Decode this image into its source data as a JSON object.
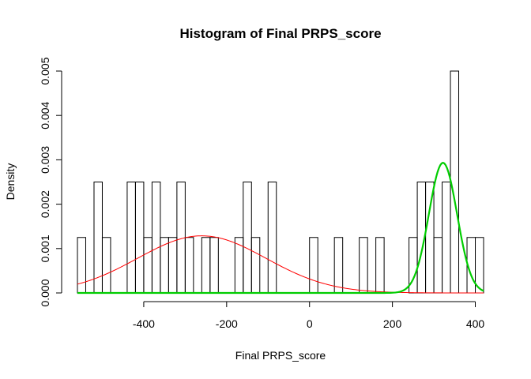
{
  "chart_data": {
    "type": "bar",
    "title": "Histogram of Final PRPS_score",
    "xlabel": "Final PRPS_score",
    "ylabel": "Density",
    "xlim": [
      -560,
      420
    ],
    "ylim": [
      0,
      0.005
    ],
    "x_ticks": [
      {
        "value": -400,
        "label": "-400"
      },
      {
        "value": -200,
        "label": "-200"
      },
      {
        "value": 0,
        "label": "0"
      },
      {
        "value": 200,
        "label": "200"
      },
      {
        "value": 400,
        "label": "400"
      }
    ],
    "y_ticks": [
      {
        "value": 0,
        "label": "0.000"
      },
      {
        "value": 0.001,
        "label": "0.001"
      },
      {
        "value": 0.002,
        "label": "0.002"
      },
      {
        "value": 0.003,
        "label": "0.003"
      },
      {
        "value": 0.004,
        "label": "0.004"
      },
      {
        "value": 0.005,
        "label": "0.005"
      }
    ],
    "bin_width": 20,
    "bins": [
      {
        "start": -560,
        "density": 0.00125
      },
      {
        "start": -540,
        "density": 0
      },
      {
        "start": -520,
        "density": 0.0025
      },
      {
        "start": -500,
        "density": 0.00125
      },
      {
        "start": -480,
        "density": 0
      },
      {
        "start": -460,
        "density": 0
      },
      {
        "start": -440,
        "density": 0.0025
      },
      {
        "start": -420,
        "density": 0.0025
      },
      {
        "start": -400,
        "density": 0.00125
      },
      {
        "start": -380,
        "density": 0.0025
      },
      {
        "start": -360,
        "density": 0.00125
      },
      {
        "start": -340,
        "density": 0.00125
      },
      {
        "start": -320,
        "density": 0.0025
      },
      {
        "start": -300,
        "density": 0.00125
      },
      {
        "start": -280,
        "density": 0
      },
      {
        "start": -260,
        "density": 0.00125
      },
      {
        "start": -240,
        "density": 0.00125
      },
      {
        "start": -220,
        "density": 0
      },
      {
        "start": -200,
        "density": 0
      },
      {
        "start": -180,
        "density": 0.00125
      },
      {
        "start": -160,
        "density": 0.0025
      },
      {
        "start": -140,
        "density": 0.00125
      },
      {
        "start": -120,
        "density": 0
      },
      {
        "start": -100,
        "density": 0.0025
      },
      {
        "start": -80,
        "density": 0
      },
      {
        "start": -60,
        "density": 0
      },
      {
        "start": -40,
        "density": 0
      },
      {
        "start": -20,
        "density": 0
      },
      {
        "start": 0,
        "density": 0.00125
      },
      {
        "start": 20,
        "density": 0
      },
      {
        "start": 40,
        "density": 0
      },
      {
        "start": 60,
        "density": 0.00125
      },
      {
        "start": 80,
        "density": 0
      },
      {
        "start": 100,
        "density": 0
      },
      {
        "start": 120,
        "density": 0.00125
      },
      {
        "start": 140,
        "density": 0
      },
      {
        "start": 160,
        "density": 0.00125
      },
      {
        "start": 180,
        "density": 0
      },
      {
        "start": 200,
        "density": 0
      },
      {
        "start": 220,
        "density": 0
      },
      {
        "start": 240,
        "density": 0.00125
      },
      {
        "start": 260,
        "density": 0.0025
      },
      {
        "start": 280,
        "density": 0.0025
      },
      {
        "start": 300,
        "density": 0.00125
      },
      {
        "start": 320,
        "density": 0.0025
      },
      {
        "start": 340,
        "density": 0.005
      },
      {
        "start": 360,
        "density": 0
      },
      {
        "start": 380,
        "density": 0.00125
      },
      {
        "start": 400,
        "density": 0.00125
      }
    ],
    "curves": [
      {
        "type": "normal-density",
        "mean": -260,
        "sd": 155,
        "weight": 0.5,
        "color": "#ff0000",
        "stroke": "thin"
      },
      {
        "type": "normal-density",
        "mean": 322,
        "sd": 34,
        "weight": 0.25,
        "color": "#00cd00",
        "stroke": "thick"
      }
    ]
  }
}
